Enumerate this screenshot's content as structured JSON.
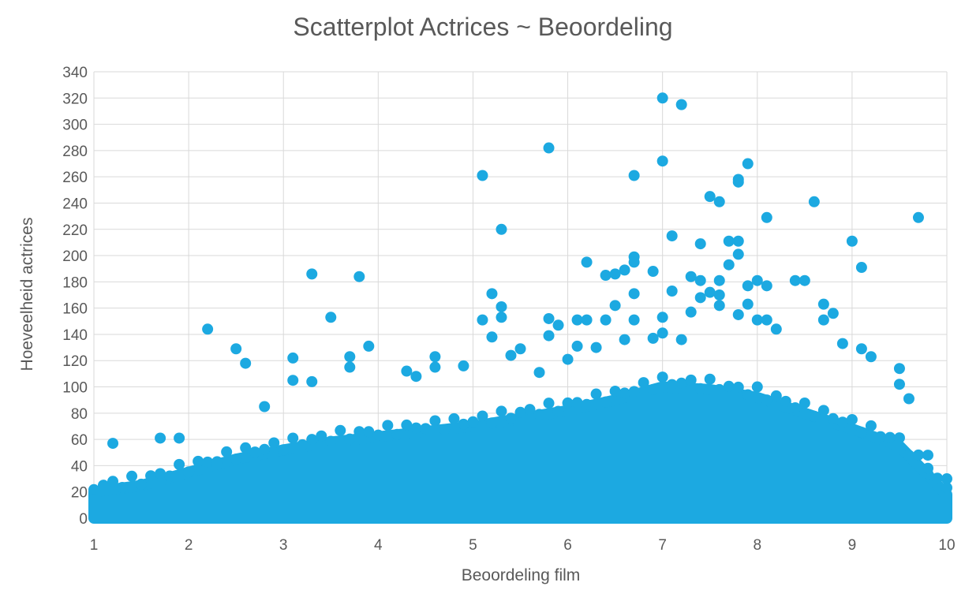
{
  "chart_data": {
    "type": "scatter",
    "title": "Scatterplot Actrices ~ Beoordeling",
    "xlabel": "Beoordeling film",
    "ylabel": "Hoeveelheid actrices",
    "xlim": [
      1,
      10
    ],
    "ylim": [
      0,
      340
    ],
    "x_ticks": [
      1,
      2,
      3,
      4,
      5,
      6,
      7,
      8,
      9,
      10
    ],
    "y_ticks": [
      0,
      20,
      40,
      60,
      80,
      100,
      120,
      140,
      160,
      180,
      200,
      220,
      240,
      260,
      280,
      300,
      320,
      340
    ],
    "grid": true,
    "legend": "none",
    "marker_color": "#1ca9e1",
    "series": [
      {
        "points": [
          [
            1.2,
            57
          ],
          [
            1.7,
            61
          ],
          [
            1.9,
            61
          ],
          [
            2.2,
            144
          ],
          [
            2.5,
            129
          ],
          [
            2.6,
            118
          ],
          [
            2.8,
            85
          ],
          [
            3.1,
            122
          ],
          [
            3.1,
            105
          ],
          [
            3.3,
            186
          ],
          [
            3.3,
            104
          ],
          [
            3.5,
            153
          ],
          [
            3.7,
            123
          ],
          [
            3.7,
            115
          ],
          [
            3.8,
            184
          ],
          [
            3.9,
            131
          ],
          [
            4.3,
            112
          ],
          [
            4.4,
            108
          ],
          [
            4.6,
            123
          ],
          [
            4.6,
            115
          ],
          [
            4.9,
            116
          ],
          [
            5.1,
            261
          ],
          [
            5.1,
            151
          ],
          [
            5.2,
            171
          ],
          [
            5.2,
            138
          ],
          [
            5.3,
            220
          ],
          [
            5.3,
            161
          ],
          [
            5.3,
            153
          ],
          [
            5.4,
            124
          ],
          [
            5.5,
            129
          ],
          [
            5.7,
            111
          ],
          [
            5.8,
            282
          ],
          [
            5.8,
            152
          ],
          [
            5.8,
            139
          ],
          [
            5.9,
            147
          ],
          [
            6.0,
            121
          ],
          [
            6.1,
            151
          ],
          [
            6.1,
            131
          ],
          [
            6.2,
            195
          ],
          [
            6.2,
            151
          ],
          [
            6.3,
            130
          ],
          [
            6.4,
            185
          ],
          [
            6.4,
            151
          ],
          [
            6.5,
            186
          ],
          [
            6.5,
            162
          ],
          [
            6.6,
            189
          ],
          [
            6.6,
            136
          ],
          [
            6.7,
            261
          ],
          [
            6.7,
            199
          ],
          [
            6.7,
            195
          ],
          [
            6.7,
            171
          ],
          [
            6.7,
            151
          ],
          [
            6.9,
            188
          ],
          [
            6.9,
            137
          ],
          [
            7.0,
            320
          ],
          [
            7.0,
            272
          ],
          [
            7.0,
            153
          ],
          [
            7.0,
            141
          ],
          [
            7.1,
            215
          ],
          [
            7.1,
            173
          ],
          [
            7.2,
            315
          ],
          [
            7.2,
            136
          ],
          [
            7.3,
            184
          ],
          [
            7.3,
            157
          ],
          [
            7.4,
            209
          ],
          [
            7.4,
            181
          ],
          [
            7.4,
            168
          ],
          [
            7.5,
            245
          ],
          [
            7.5,
            172
          ],
          [
            7.6,
            241
          ],
          [
            7.6,
            181
          ],
          [
            7.6,
            170
          ],
          [
            7.6,
            162
          ],
          [
            7.7,
            211
          ],
          [
            7.7,
            193
          ],
          [
            7.8,
            258
          ],
          [
            7.8,
            256
          ],
          [
            7.8,
            211
          ],
          [
            7.8,
            201
          ],
          [
            7.8,
            155
          ],
          [
            7.9,
            270
          ],
          [
            7.9,
            177
          ],
          [
            7.9,
            163
          ],
          [
            8.0,
            181
          ],
          [
            8.0,
            151
          ],
          [
            8.1,
            229
          ],
          [
            8.1,
            177
          ],
          [
            8.1,
            151
          ],
          [
            8.2,
            144
          ],
          [
            8.4,
            181
          ],
          [
            8.5,
            181
          ],
          [
            8.6,
            241
          ],
          [
            8.7,
            163
          ],
          [
            8.7,
            151
          ],
          [
            8.8,
            156
          ],
          [
            8.9,
            133
          ],
          [
            9.0,
            211
          ],
          [
            9.1,
            191
          ],
          [
            9.1,
            129
          ],
          [
            9.2,
            123
          ],
          [
            9.5,
            114
          ],
          [
            9.5,
            102
          ],
          [
            9.6,
            91
          ],
          [
            9.7,
            229
          ],
          [
            9.8,
            48
          ],
          [
            9.8,
            38
          ],
          [
            10.0,
            30
          ]
        ]
      }
    ],
    "dense_region": {
      "x": [
        1,
        1.5,
        2,
        2.5,
        3,
        3.5,
        4,
        4.5,
        5,
        5.5,
        6,
        6.5,
        7,
        7.5,
        8,
        8.5,
        9,
        9.5,
        10
      ],
      "upper_y": [
        20,
        25,
        35,
        45,
        52,
        58,
        62,
        66,
        70,
        76,
        82,
        90,
        100,
        98,
        92,
        80,
        68,
        55,
        18
      ]
    }
  }
}
